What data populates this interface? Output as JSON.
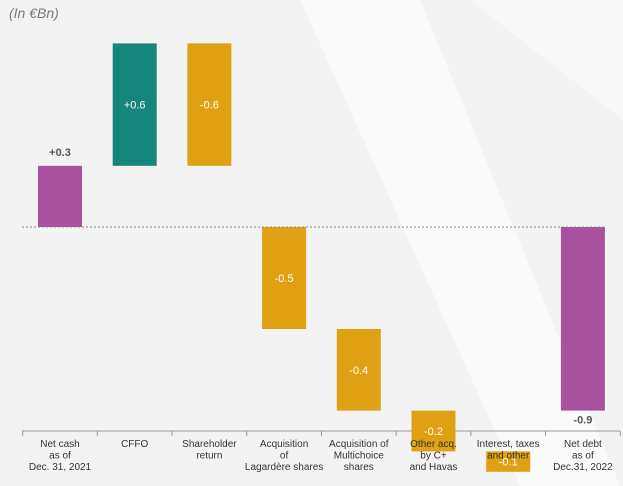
{
  "unit_label": "(In €Bn)",
  "colors": {
    "background": "#f3f3f3",
    "background_shape": "#ffffff",
    "net_cash": "#a8519c",
    "cffo": "#15877a",
    "outflow": "#e0a014",
    "zero_line": "#8a8a8a",
    "axis": "#9a9a9a",
    "label_inside": "#ffffff",
    "label_outside": "#555555",
    "category_text": "#333333"
  },
  "chart_data": {
    "type": "bar",
    "subtype": "waterfall",
    "title": "",
    "xlabel": "",
    "ylabel": "",
    "unit": "(In €Bn)",
    "ylim": [
      -1.05,
      0.9
    ],
    "grid": false,
    "legend": "none",
    "bars": [
      {
        "category": "Net cash\nas of\nDec. 31, 2021",
        "start": 0.0,
        "end": 0.3,
        "label": "+0.3",
        "label_position": "above",
        "label_bold": true,
        "color_key": "net_cash"
      },
      {
        "category": "CFFO",
        "start": 0.3,
        "end": 0.9,
        "label": "+0.6",
        "label_position": "inside",
        "label_bold": false,
        "color_key": "cffo"
      },
      {
        "category": "Shareholder\nreturn",
        "start": 0.9,
        "end": 0.3,
        "label": "-0.6",
        "label_position": "inside",
        "label_bold": false,
        "color_key": "outflow"
      },
      {
        "category": "Acquisition\nof\nLagardère shares",
        "start": 0.0,
        "end": -0.5,
        "label": "-0.5",
        "label_position": "inside",
        "label_bold": false,
        "color_key": "outflow"
      },
      {
        "category": "Acquisition of\nMultichoice\nshares",
        "start": -0.5,
        "end": -0.9,
        "label": "-0.4",
        "label_position": "inside",
        "label_bold": false,
        "color_key": "outflow"
      },
      {
        "category": "Other acq.\nby C+\nand Havas",
        "start": -0.9,
        "end": -1.1,
        "label": "-0.2",
        "label_position": "inside",
        "label_bold": false,
        "color_key": "outflow"
      },
      {
        "category": "Interest, taxes\nand other",
        "start": -1.1,
        "end": -1.2,
        "label": "-0.1",
        "label_position": "inside",
        "label_bold": false,
        "color_key": "outflow"
      },
      {
        "category": "Net debt\nas of\nDec.31, 2022",
        "start": 0.0,
        "end": -0.9,
        "label": "-0.9",
        "label_position": "below",
        "label_bold": true,
        "color_key": "net_cash"
      }
    ]
  }
}
